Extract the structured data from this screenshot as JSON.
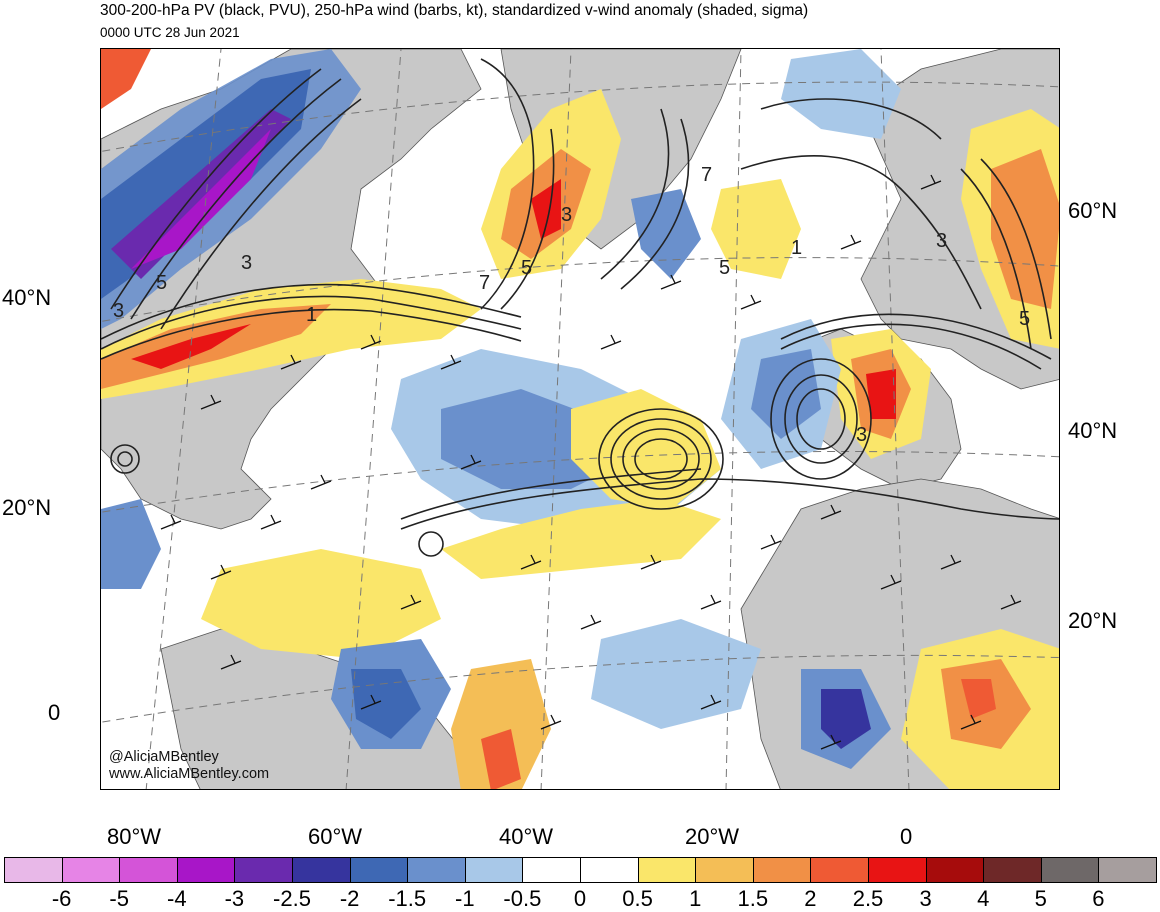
{
  "header": {
    "title": "300-200-hPa PV (black, PVU), 250-hPa wind (barbs, kt), standardized v-wind anomaly (shaded, sigma)",
    "datetime": "0000 UTC 28 Jun 2021"
  },
  "map": {
    "lat_labels_left": [
      "40°N",
      "20°N",
      "0"
    ],
    "lat_labels_right": [
      "60°N",
      "40°N",
      "20°N"
    ],
    "lon_labels": [
      "80°W",
      "60°W",
      "40°W",
      "20°W",
      "0"
    ],
    "pv_contour_labels": [
      "5",
      "3",
      "3",
      "1",
      "3",
      "5",
      "7",
      "7",
      "1",
      "5",
      "3",
      "5",
      "3"
    ],
    "watermark": {
      "handle": "@AliciaMBentley",
      "url": "www.AliciaMBentley.com"
    }
  },
  "colorbar": {
    "ticks": [
      "-6",
      "-5",
      "-4",
      "-3",
      "-2.5",
      "-2",
      "-1.5",
      "-1",
      "-0.5",
      "0",
      "0.5",
      "1",
      "1.5",
      "2",
      "2.5",
      "3",
      "4",
      "5",
      "6"
    ],
    "colors": [
      "#e8b8e8",
      "#e684e6",
      "#d454d8",
      "#a816c8",
      "#6a2aae",
      "#36349e",
      "#3e68b4",
      "#6a90cc",
      "#a8c8e8",
      "#ffffff",
      "#ffffff",
      "#fae66a",
      "#f4be56",
      "#f19046",
      "#ef5a34",
      "#e81414",
      "#a60c0c",
      "#6e2828",
      "#6e6868",
      "#a69e9e"
    ]
  }
}
